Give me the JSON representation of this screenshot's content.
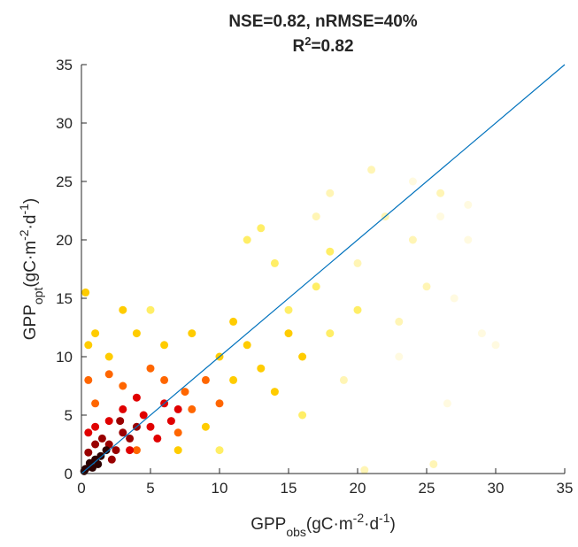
{
  "chart_data": {
    "type": "scatter",
    "title": "NSE=0.82, nRMSE=40%",
    "subtitle": [
      "R",
      "2",
      "=0.82"
    ],
    "xlabel": [
      "GPP",
      "obs",
      "(gC·m",
      "-2",
      "·d",
      "-1",
      ")"
    ],
    "ylabel": [
      "GPP",
      "opt",
      "(gC·m",
      "-2",
      "·d",
      "-1",
      ")"
    ],
    "xlim": [
      0,
      35
    ],
    "ylim": [
      0,
      35
    ],
    "xticks": [
      0,
      5,
      10,
      15,
      20,
      25,
      30,
      35
    ],
    "yticks": [
      0,
      5,
      10,
      15,
      20,
      25,
      30,
      35
    ],
    "line_color": "#0072bd",
    "series": [
      {
        "color": "#fffae0",
        "x": [
          28,
          27,
          26,
          29,
          28,
          30,
          24,
          23,
          26.5
        ],
        "y": [
          20,
          15,
          22,
          12,
          23,
          11,
          25,
          10,
          6
        ]
      },
      {
        "color": "#fff5b5",
        "x": [
          20,
          22,
          24,
          18,
          21,
          25,
          23,
          19,
          26,
          17,
          20.5,
          25.5
        ],
        "y": [
          18,
          22,
          20,
          24,
          26,
          16,
          13,
          8,
          24,
          22,
          0.3,
          0.8
        ]
      },
      {
        "color": "#ffee66",
        "x": [
          15,
          17,
          14,
          18,
          12,
          16,
          5,
          10,
          20,
          18,
          13
        ],
        "y": [
          14,
          16,
          18,
          12,
          20,
          5,
          14,
          2,
          14,
          19,
          21
        ]
      },
      {
        "color": "#ffcc00",
        "x": [
          10,
          12,
          11,
          8,
          13,
          6,
          4,
          2,
          1,
          0.5,
          15,
          9,
          14,
          3,
          7,
          11,
          0.3,
          16
        ],
        "y": [
          10,
          11,
          8,
          12,
          9,
          11,
          12,
          10,
          12,
          11,
          12,
          4,
          7,
          14,
          2,
          13,
          15.5,
          10
        ]
      },
      {
        "color": "#ff6600",
        "x": [
          7.5,
          8,
          6,
          3,
          1,
          9,
          5,
          4,
          0.5,
          10,
          2,
          7
        ],
        "y": [
          7,
          5.5,
          8,
          7.5,
          6,
          8,
          9,
          2,
          8,
          6,
          8.5,
          3.5
        ]
      },
      {
        "color": "#e00000",
        "x": [
          4.5,
          5,
          6,
          3,
          5.5,
          2,
          7,
          1,
          4,
          6.5,
          0.5,
          3.5
        ],
        "y": [
          5,
          4,
          6,
          5.5,
          3,
          4.5,
          5.5,
          4,
          6.5,
          4.5,
          3.5,
          2
        ]
      },
      {
        "color": "#990000",
        "x": [
          2,
          2.5,
          3,
          1.5,
          3.5,
          2.2,
          1,
          4,
          0.5,
          2.8
        ],
        "y": [
          2.5,
          2,
          3.5,
          3,
          3,
          1.2,
          2.5,
          4,
          1.8,
          4.5
        ]
      },
      {
        "color": "#2b0000",
        "x": [
          0.3,
          0.6,
          1,
          1.4,
          0.8,
          1.8,
          0.2,
          1.2
        ],
        "y": [
          0.4,
          0.9,
          1.2,
          1.5,
          0.5,
          2,
          0.2,
          0.8
        ]
      }
    ]
  }
}
